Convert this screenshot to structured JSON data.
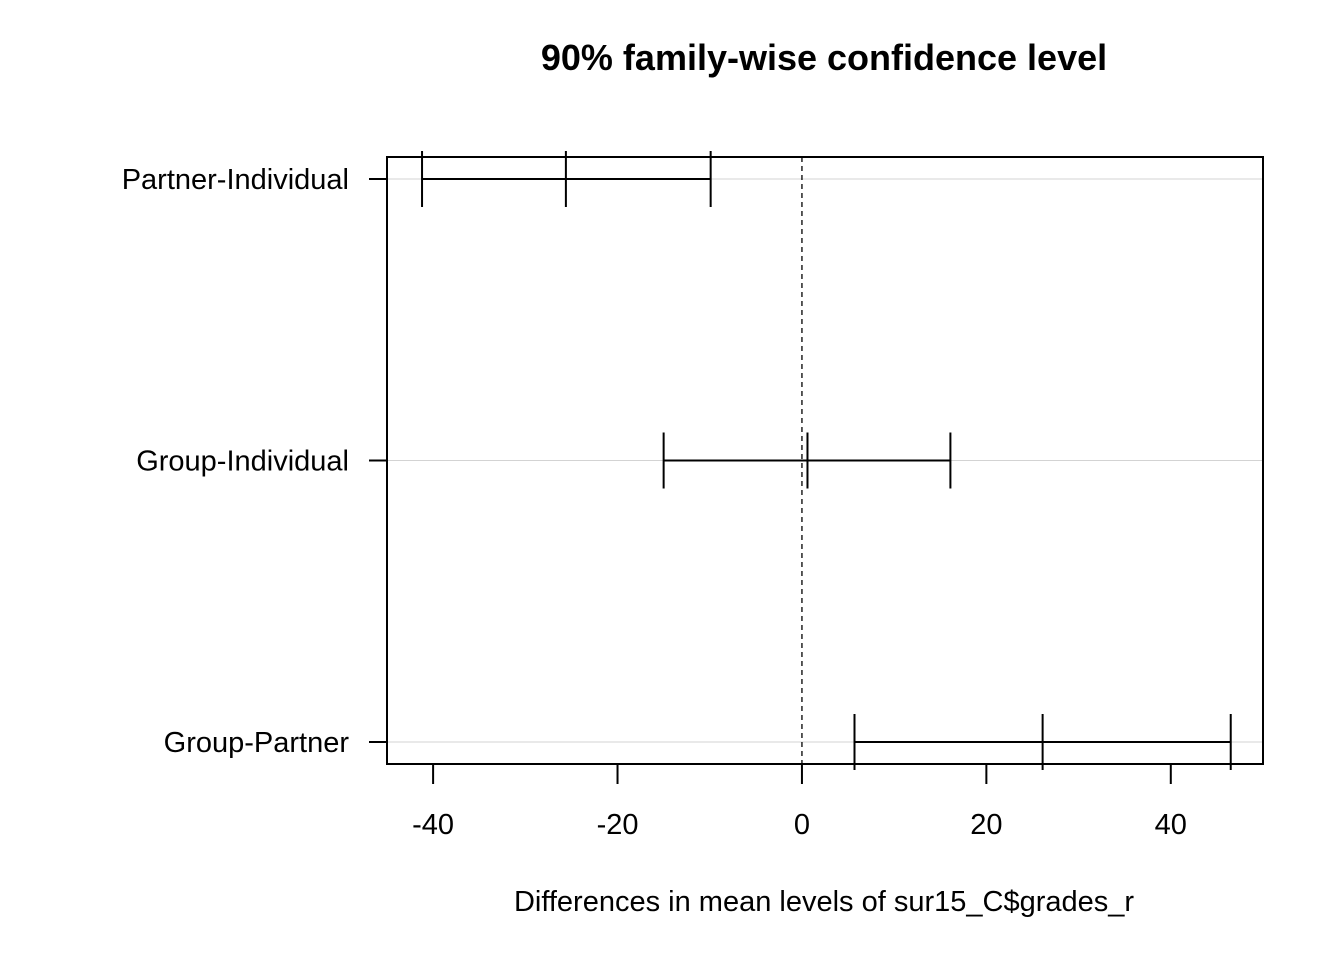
{
  "chart_data": {
    "type": "interval",
    "title": "90% family-wise confidence level",
    "xlabel": "Differences in mean levels of sur15_C$grades_r",
    "ylabel": "",
    "xlim": [
      -45,
      50
    ],
    "xticks": [
      -40,
      -20,
      0,
      20,
      40
    ],
    "xtick_labels": [
      "-40",
      "-20",
      "0",
      "20",
      "40"
    ],
    "reference_line": 0,
    "grid": "horizontal",
    "categories": [
      "Partner-Individual",
      "Group-Individual",
      "Group-Partner"
    ],
    "series": [
      {
        "values": [
          {
            "lwr": -41.2,
            "diff": -25.6,
            "upr": -9.9
          },
          {
            "lwr": -15.0,
            "diff": 0.6,
            "upr": 16.1
          },
          {
            "lwr": 5.7,
            "diff": 26.1,
            "upr": 46.5
          }
        ]
      }
    ]
  }
}
